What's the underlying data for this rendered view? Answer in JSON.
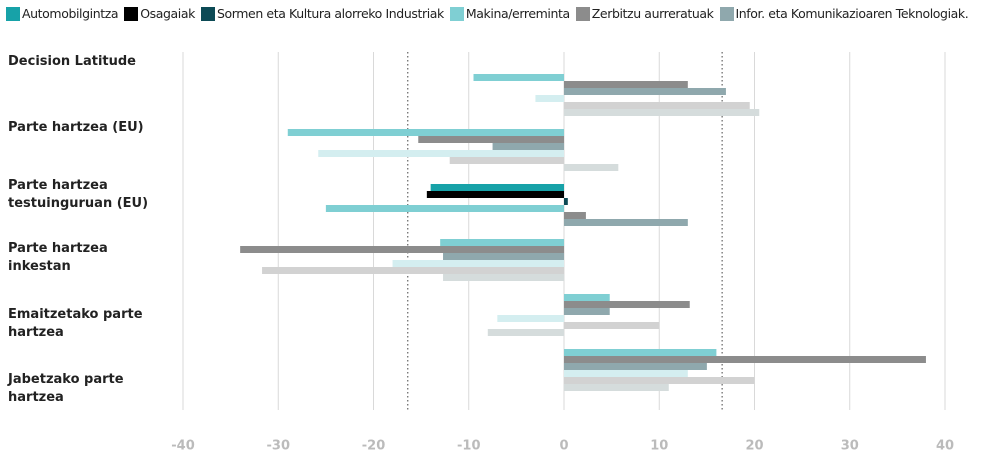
{
  "chart_data": {
    "type": "hbar",
    "categories": [
      "Decision Latitude",
      "Parte hartzea (EU)",
      "Parte hartzea testuinguruan (EU)",
      "Parte hartzea inkestan",
      "Emaitzetako parte hartzea",
      "Jabetzako parte hartzea"
    ],
    "series": [
      {
        "name": "Automobilgintza",
        "color": "#17a2a8",
        "values": [
          null,
          null,
          -14,
          null,
          null,
          null
        ]
      },
      {
        "name": "Osagaiak",
        "color": "#000000",
        "values": [
          null,
          null,
          -14.4,
          null,
          null,
          null
        ]
      },
      {
        "name": "Sormen eta Kultura alorreko Industriak",
        "color": "#0c4a55",
        "values": [
          null,
          null,
          0.4,
          null,
          null,
          null
        ]
      },
      {
        "name": "Makina/erreminta",
        "color": "#7fcfd3",
        "values": [
          -9.5,
          -29,
          -25,
          -13,
          4.8,
          16
        ]
      },
      {
        "name": "Zerbitzu aurreratuak",
        "color": "#8c8c8c",
        "values": [
          13,
          -15.3,
          2.3,
          -34,
          13.2,
          38
        ]
      },
      {
        "name": "Infor. eta Komunikazioaren Teknologiak.",
        "color": "#8fa8ad",
        "values": [
          17,
          -7.5,
          13,
          -12.7,
          4.8,
          15
        ]
      },
      {
        "color": "#d4eef0",
        "values": [
          -3,
          -25.8,
          null,
          -18,
          -7,
          13
        ]
      },
      {
        "color": "#d2d2d2",
        "values": [
          19.5,
          -12,
          null,
          -31.7,
          10,
          20
        ]
      },
      {
        "color": "#d5dcdc",
        "values": [
          20.5,
          5.7,
          null,
          -12.7,
          -8,
          11
        ]
      }
    ],
    "xlim": [
      -40,
      40
    ],
    "xticks": [
      -40,
      -30,
      -20,
      -10,
      0,
      10,
      20,
      30,
      40
    ],
    "grid": true,
    "reference_lines": [
      -16.4,
      16.6
    ]
  }
}
